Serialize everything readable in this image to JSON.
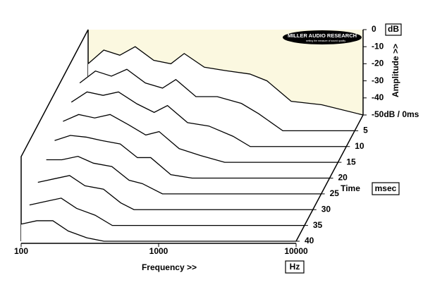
{
  "chart_data": {
    "type": "waterfall",
    "logo": "MILLER AUDIO RESEARCH",
    "logo_tagline": "setting the measure of sound quality",
    "amplitude_label": "Amplitude >>",
    "amplitude_unit": "dB",
    "time_label": "Time",
    "time_unit": "msec",
    "x_label": "Frequency >>",
    "x_unit": "Hz",
    "x": [
      100,
      130,
      170,
      220,
      300,
      400,
      500,
      700,
      1000,
      1500,
      2000,
      3000,
      5000,
      10000
    ],
    "xlim": [
      100,
      10000
    ],
    "xticks": [
      100,
      1000,
      10000
    ],
    "log_x": true,
    "zlim": [
      -50,
      0
    ],
    "zticks": [
      0,
      -10,
      -20,
      -30,
      -40,
      {
        "value": -50,
        "label": "-50dB / 0ms"
      }
    ],
    "tlim": [
      0,
      40
    ],
    "tticks": [
      5,
      10,
      15,
      20,
      25,
      30,
      35,
      40
    ],
    "color": "#000000",
    "wall_color": "#fbf8e0",
    "series": [
      {
        "time": 0,
        "values": [
          -20,
          -12,
          -15,
          -10,
          -18,
          -20,
          -14,
          -22,
          -24,
          -26,
          -30,
          -42,
          -44,
          -50
        ]
      },
      {
        "time": 5,
        "values": [
          -22,
          -15,
          -18,
          -14,
          -22,
          -25,
          -20,
          -30,
          -30,
          -34,
          -40,
          -50,
          -50,
          -50
        ]
      },
      {
        "time": 10,
        "values": [
          -24,
          -18,
          -20,
          -18,
          -25,
          -30,
          -26,
          -36,
          -38,
          -44,
          -50,
          -50,
          -50,
          -50
        ]
      },
      {
        "time": 15,
        "values": [
          -26,
          -22,
          -24,
          -22,
          -28,
          -34,
          -32,
          -42,
          -46,
          -50,
          -50,
          -50,
          -50,
          -50
        ]
      },
      {
        "time": 20,
        "values": [
          -28,
          -25,
          -26,
          -28,
          -30,
          -38,
          -38,
          -48,
          -50,
          -50,
          -50,
          -50,
          -50,
          -50
        ]
      },
      {
        "time": 25,
        "values": [
          -30,
          -30,
          -28,
          -32,
          -34,
          -42,
          -44,
          -50,
          -50,
          -50,
          -50,
          -50,
          -50,
          -50
        ]
      },
      {
        "time": 30,
        "values": [
          -34,
          -32,
          -30,
          -36,
          -38,
          -46,
          -50,
          -50,
          -50,
          -50,
          -50,
          -50,
          -50,
          -50
        ]
      },
      {
        "time": 35,
        "values": [
          -38,
          -36,
          -34,
          -40,
          -44,
          -50,
          -50,
          -50,
          -50,
          -50,
          -50,
          -50,
          -50,
          -50
        ]
      },
      {
        "time": 40,
        "values": [
          -40,
          -38,
          -38,
          -44,
          -48,
          -50,
          -50,
          -50,
          -50,
          -50,
          -50,
          -50,
          -50,
          -50
        ]
      }
    ]
  }
}
